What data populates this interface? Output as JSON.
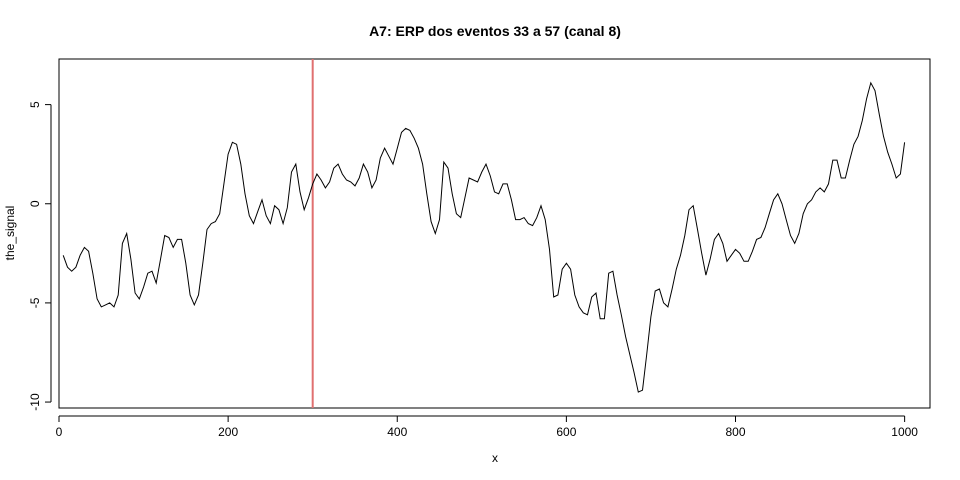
{
  "chart_data": {
    "type": "line",
    "title": "A7: ERP dos eventos 33 a 57 (canal 8)",
    "xlabel": "x",
    "ylabel": "the_signal",
    "xlim": [
      0,
      1030
    ],
    "ylim": [
      -10.3,
      7.3
    ],
    "grid": false,
    "x_ticks": [
      0,
      200,
      400,
      600,
      800,
      1000
    ],
    "y_ticks": [
      -10,
      -5,
      0,
      5
    ],
    "x_tick_labels": [
      "0",
      "200",
      "400",
      "600",
      "800",
      "1000"
    ],
    "y_tick_labels": [
      "-10",
      "-5",
      "0",
      "5"
    ],
    "vline": {
      "x": 300,
      "color": "#e07070"
    },
    "series": [
      {
        "color": "#000000",
        "points": [
          [
            5,
            -2.6
          ],
          [
            10,
            -3.2
          ],
          [
            15,
            -3.4
          ],
          [
            20,
            -3.2
          ],
          [
            25,
            -2.6
          ],
          [
            30,
            -2.2
          ],
          [
            35,
            -2.4
          ],
          [
            40,
            -3.5
          ],
          [
            45,
            -4.8
          ],
          [
            50,
            -5.2
          ],
          [
            55,
            -5.1
          ],
          [
            60,
            -5.0
          ],
          [
            65,
            -5.2
          ],
          [
            70,
            -4.6
          ],
          [
            75,
            -2.0
          ],
          [
            80,
            -1.5
          ],
          [
            85,
            -2.8
          ],
          [
            90,
            -4.5
          ],
          [
            95,
            -4.8
          ],
          [
            100,
            -4.2
          ],
          [
            105,
            -3.5
          ],
          [
            110,
            -3.4
          ],
          [
            115,
            -4.0
          ],
          [
            120,
            -2.8
          ],
          [
            125,
            -1.6
          ],
          [
            130,
            -1.7
          ],
          [
            135,
            -2.2
          ],
          [
            140,
            -1.8
          ],
          [
            145,
            -1.8
          ],
          [
            150,
            -3.0
          ],
          [
            155,
            -4.6
          ],
          [
            160,
            -5.1
          ],
          [
            165,
            -4.6
          ],
          [
            170,
            -3.0
          ],
          [
            175,
            -1.3
          ],
          [
            180,
            -1.0
          ],
          [
            185,
            -0.9
          ],
          [
            190,
            -0.5
          ],
          [
            195,
            1.0
          ],
          [
            200,
            2.5
          ],
          [
            205,
            3.1
          ],
          [
            210,
            3.0
          ],
          [
            215,
            2.0
          ],
          [
            220,
            0.5
          ],
          [
            225,
            -0.6
          ],
          [
            230,
            -1.0
          ],
          [
            235,
            -0.4
          ],
          [
            240,
            0.2
          ],
          [
            245,
            -0.6
          ],
          [
            250,
            -1.0
          ],
          [
            255,
            -0.1
          ],
          [
            260,
            -0.3
          ],
          [
            265,
            -1.0
          ],
          [
            270,
            -0.2
          ],
          [
            275,
            1.6
          ],
          [
            280,
            2.0
          ],
          [
            285,
            0.6
          ],
          [
            290,
            -0.3
          ],
          [
            295,
            0.3
          ],
          [
            300,
            1.0
          ],
          [
            305,
            1.5
          ],
          [
            310,
            1.2
          ],
          [
            315,
            0.8
          ],
          [
            320,
            1.1
          ],
          [
            325,
            1.8
          ],
          [
            330,
            2.0
          ],
          [
            335,
            1.5
          ],
          [
            340,
            1.2
          ],
          [
            345,
            1.1
          ],
          [
            350,
            0.9
          ],
          [
            355,
            1.3
          ],
          [
            360,
            2.0
          ],
          [
            365,
            1.6
          ],
          [
            370,
            0.8
          ],
          [
            375,
            1.2
          ],
          [
            380,
            2.3
          ],
          [
            385,
            2.8
          ],
          [
            390,
            2.4
          ],
          [
            395,
            2.0
          ],
          [
            400,
            2.8
          ],
          [
            405,
            3.6
          ],
          [
            410,
            3.8
          ],
          [
            415,
            3.7
          ],
          [
            420,
            3.3
          ],
          [
            425,
            2.8
          ],
          [
            430,
            2.0
          ],
          [
            435,
            0.5
          ],
          [
            440,
            -0.9
          ],
          [
            445,
            -1.5
          ],
          [
            450,
            -0.8
          ],
          [
            455,
            2.1
          ],
          [
            460,
            1.8
          ],
          [
            465,
            0.5
          ],
          [
            470,
            -0.5
          ],
          [
            475,
            -0.7
          ],
          [
            480,
            0.3
          ],
          [
            485,
            1.3
          ],
          [
            490,
            1.2
          ],
          [
            495,
            1.1
          ],
          [
            500,
            1.6
          ],
          [
            505,
            2.0
          ],
          [
            510,
            1.4
          ],
          [
            515,
            0.6
          ],
          [
            520,
            0.5
          ],
          [
            525,
            1.0
          ],
          [
            530,
            1.0
          ],
          [
            535,
            0.2
          ],
          [
            540,
            -0.8
          ],
          [
            545,
            -0.8
          ],
          [
            550,
            -0.7
          ],
          [
            555,
            -1.0
          ],
          [
            560,
            -1.1
          ],
          [
            565,
            -0.7
          ],
          [
            570,
            -0.1
          ],
          [
            575,
            -0.8
          ],
          [
            580,
            -2.3
          ],
          [
            585,
            -4.7
          ],
          [
            590,
            -4.6
          ],
          [
            595,
            -3.3
          ],
          [
            600,
            -3.0
          ],
          [
            605,
            -3.3
          ],
          [
            610,
            -4.6
          ],
          [
            615,
            -5.2
          ],
          [
            620,
            -5.5
          ],
          [
            625,
            -5.6
          ],
          [
            630,
            -4.7
          ],
          [
            635,
            -4.5
          ],
          [
            640,
            -5.8
          ],
          [
            645,
            -5.8
          ],
          [
            650,
            -3.5
          ],
          [
            655,
            -3.4
          ],
          [
            660,
            -4.6
          ],
          [
            665,
            -5.6
          ],
          [
            670,
            -6.7
          ],
          [
            675,
            -7.6
          ],
          [
            680,
            -8.5
          ],
          [
            685,
            -9.5
          ],
          [
            690,
            -9.4
          ],
          [
            695,
            -7.6
          ],
          [
            700,
            -5.7
          ],
          [
            705,
            -4.4
          ],
          [
            710,
            -4.3
          ],
          [
            715,
            -5.0
          ],
          [
            720,
            -5.2
          ],
          [
            725,
            -4.3
          ],
          [
            730,
            -3.3
          ],
          [
            735,
            -2.6
          ],
          [
            740,
            -1.6
          ],
          [
            745,
            -0.3
          ],
          [
            750,
            -0.1
          ],
          [
            755,
            -1.3
          ],
          [
            760,
            -2.5
          ],
          [
            765,
            -3.6
          ],
          [
            770,
            -2.8
          ],
          [
            775,
            -1.8
          ],
          [
            780,
            -1.5
          ],
          [
            785,
            -2.0
          ],
          [
            790,
            -2.9
          ],
          [
            795,
            -2.6
          ],
          [
            800,
            -2.3
          ],
          [
            805,
            -2.5
          ],
          [
            810,
            -2.9
          ],
          [
            815,
            -2.9
          ],
          [
            820,
            -2.4
          ],
          [
            825,
            -1.8
          ],
          [
            830,
            -1.7
          ],
          [
            835,
            -1.2
          ],
          [
            840,
            -0.5
          ],
          [
            845,
            0.2
          ],
          [
            850,
            0.5
          ],
          [
            855,
            0.0
          ],
          [
            860,
            -0.8
          ],
          [
            865,
            -1.6
          ],
          [
            870,
            -2.0
          ],
          [
            875,
            -1.5
          ],
          [
            880,
            -0.5
          ],
          [
            885,
            0.0
          ],
          [
            890,
            0.2
          ],
          [
            895,
            0.6
          ],
          [
            900,
            0.8
          ],
          [
            905,
            0.6
          ],
          [
            910,
            1.0
          ],
          [
            915,
            2.2
          ],
          [
            920,
            2.2
          ],
          [
            925,
            1.3
          ],
          [
            930,
            1.3
          ],
          [
            935,
            2.2
          ],
          [
            940,
            3.0
          ],
          [
            945,
            3.4
          ],
          [
            950,
            4.2
          ],
          [
            955,
            5.3
          ],
          [
            960,
            6.1
          ],
          [
            965,
            5.7
          ],
          [
            970,
            4.5
          ],
          [
            975,
            3.4
          ],
          [
            980,
            2.6
          ],
          [
            985,
            2.0
          ],
          [
            990,
            1.3
          ],
          [
            995,
            1.5
          ],
          [
            1000,
            3.1
          ]
        ]
      }
    ]
  }
}
